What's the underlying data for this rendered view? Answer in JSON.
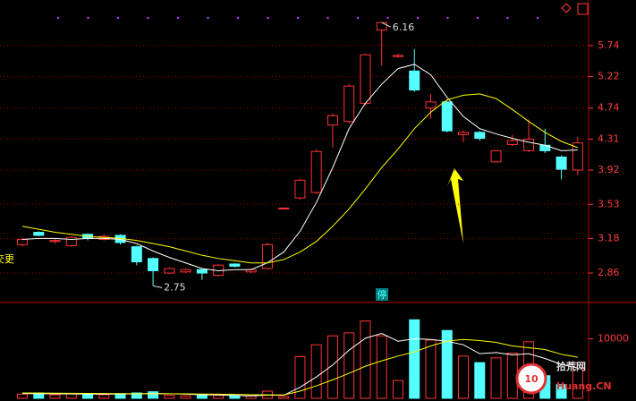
{
  "chart_data": [
    {
      "type": "candlestick",
      "ylog": true,
      "ylim": [
        2.62,
        6.6
      ],
      "yticks": [
        2.86,
        3.18,
        3.53,
        3.92,
        4.31,
        4.74,
        5.22,
        5.74
      ],
      "grid": true,
      "up_color": "#ff3232",
      "down_color": "#54ffff",
      "axis_color": "#ff3c3c",
      "open": [
        3.12,
        3.24,
        3.15,
        3.11,
        3.22,
        3.17,
        3.21,
        3.1,
        2.99,
        2.86,
        2.87,
        2.89,
        2.84,
        2.94,
        2.87,
        2.9,
        3.49,
        3.6,
        3.66,
        4.5,
        4.55,
        4.81,
        6.02,
        5.55,
        5.31,
        4.74,
        4.83,
        4.37,
        4.4,
        4.02,
        4.24,
        4.16,
        4.23,
        4.08,
        3.92
      ],
      "high": [
        3.19,
        3.25,
        3.18,
        3.2,
        3.23,
        3.22,
        3.22,
        3.11,
        3.0,
        2.91,
        2.9,
        2.9,
        2.94,
        2.95,
        2.9,
        3.14,
        3.49,
        3.82,
        4.18,
        4.66,
        5.1,
        5.6,
        6.16,
        5.6,
        5.68,
        4.95,
        4.85,
        4.43,
        4.42,
        4.17,
        4.37,
        4.58,
        4.45,
        4.1,
        4.34
      ],
      "low": [
        3.1,
        3.2,
        3.13,
        3.1,
        3.16,
        3.16,
        3.12,
        2.93,
        2.75,
        2.85,
        2.86,
        2.8,
        2.83,
        2.91,
        2.86,
        2.89,
        3.49,
        3.58,
        3.64,
        4.2,
        4.52,
        4.78,
        5.4,
        5.53,
        4.98,
        4.59,
        4.4,
        4.27,
        4.29,
        4.01,
        4.22,
        4.14,
        4.13,
        3.81,
        3.86
      ],
      "close": [
        3.17,
        3.21,
        3.16,
        3.19,
        3.18,
        3.2,
        3.14,
        2.96,
        2.88,
        2.9,
        2.89,
        2.86,
        2.93,
        2.92,
        2.89,
        3.12,
        3.49,
        3.8,
        4.15,
        4.63,
        5.07,
        5.58,
        6.16,
        5.57,
        5.01,
        4.83,
        4.42,
        4.4,
        4.32,
        4.16,
        4.29,
        4.31,
        4.16,
        3.93,
        4.26
      ],
      "series": [
        {
          "color": "#ffffff",
          "values": [
            3.17,
            3.18,
            3.18,
            3.17,
            3.18,
            3.18,
            3.17,
            3.13,
            3.06,
            3.0,
            2.95,
            2.9,
            2.88,
            2.89,
            2.89,
            2.95,
            3.05,
            3.25,
            3.55,
            3.95,
            4.45,
            4.81,
            5.1,
            5.35,
            5.42,
            5.25,
            4.9,
            4.62,
            4.45,
            4.38,
            4.32,
            4.27,
            4.23,
            4.16,
            4.17
          ]
        },
        {
          "color": "#ffff00",
          "values": [
            3.3,
            3.27,
            3.24,
            3.22,
            3.2,
            3.19,
            3.18,
            3.16,
            3.13,
            3.1,
            3.06,
            3.02,
            2.99,
            2.97,
            2.95,
            2.95,
            2.98,
            3.05,
            3.15,
            3.3,
            3.48,
            3.7,
            3.95,
            4.18,
            4.45,
            4.68,
            4.86,
            4.93,
            4.95,
            4.88,
            4.72,
            4.55,
            4.4,
            4.28,
            4.2
          ]
        }
      ],
      "texts": [
        "停",
        "交更"
      ]
    },
    {
      "type": "volume",
      "ylim": [
        0,
        15800
      ],
      "yticks": [
        10000
      ],
      "values": [
        700,
        900,
        600,
        800,
        700,
        600,
        800,
        900,
        1100,
        500,
        400,
        600,
        500,
        400,
        400,
        1200,
        300,
        7000,
        9000,
        10500,
        11000,
        13000,
        10500,
        3000,
        13200,
        9800,
        11400,
        7100,
        6000,
        6800,
        7600,
        9500,
        3800,
        2300,
        6000
      ],
      "series": [
        {
          "color": "#ffffff",
          "values": [
            800,
            780,
            760,
            740,
            720,
            700,
            720,
            760,
            820,
            780,
            700,
            600,
            560,
            480,
            420,
            520,
            520,
            1850,
            3600,
            5600,
            8100,
            10100,
            10900,
            9600,
            10000,
            9900,
            9600,
            9000,
            7500,
            7700,
            7300,
            7500,
            6700,
            5700,
            5100
          ]
        },
        {
          "color": "#ffff00",
          "values": [
            900,
            880,
            860,
            840,
            820,
            800,
            780,
            770,
            770,
            760,
            750,
            720,
            690,
            650,
            600,
            580,
            560,
            1200,
            2100,
            3100,
            4200,
            5400,
            6300,
            7100,
            7800,
            8800,
            9600,
            9900,
            9700,
            9400,
            8800,
            8500,
            8200,
            7400,
            6900
          ]
        }
      ]
    }
  ],
  "watermark": {
    "logo": "10",
    "name": "拾荒网",
    "site": "Huang.CN"
  }
}
